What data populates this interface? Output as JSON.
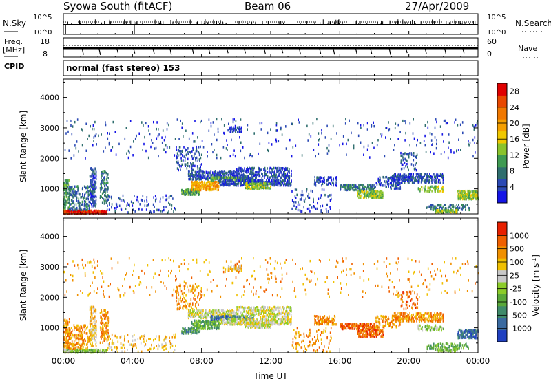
{
  "header": {
    "station": "Syowa South (fitACF)",
    "beam": "Beam 06",
    "date": "27/Apr/2009"
  },
  "nsky_panel": {
    "left_label": "N.Sky",
    "right_label": "N.Search",
    "ticks_left": [
      "10^5",
      "10^0"
    ],
    "ticks_right": [
      "10^5",
      "10^0"
    ]
  },
  "freq_panel": {
    "left_label_1": "Freq.",
    "left_label_2": "[MHz]",
    "right_label": "Nave",
    "ticks_left": [
      "18",
      "8"
    ],
    "ticks_right": [
      "60",
      "0"
    ]
  },
  "cpid_panel": {
    "label": "CPID",
    "text": "normal (fast stereo) 153"
  },
  "time_axis": {
    "label": "Time UT",
    "ticks": [
      "00:00",
      "04:00",
      "08:00",
      "12:00",
      "16:00",
      "20:00",
      "00:00"
    ]
  },
  "chart_data": [
    {
      "type": "heatmap",
      "name": "power",
      "ylabel": "Slant Range [km]",
      "xlabel": "Time UT",
      "x_range_hours": [
        0,
        24
      ],
      "ylim": [
        180,
        4600
      ],
      "y_ticks": [
        "1000",
        "2000",
        "3000",
        "4000"
      ],
      "y_tick_values": [
        1000,
        2000,
        3000,
        4000
      ],
      "colorbar": {
        "label": "Power [dB]",
        "ticks": [
          "4",
          "8",
          "12",
          "16",
          "20",
          "24",
          "28"
        ],
        "range": [
          0,
          30
        ],
        "colors": [
          "#1414e6",
          "#2a49b4",
          "#2f6e6e",
          "#3f9a52",
          "#8ac32c",
          "#f0c800",
          "#f5a000",
          "#f07800",
          "#e84800",
          "#e00000"
        ]
      }
    },
    {
      "type": "heatmap",
      "name": "velocity",
      "ylabel": "Slant Range [km]",
      "xlabel": "Time UT",
      "x_range_hours": [
        0,
        24
      ],
      "ylim": [
        180,
        4600
      ],
      "y_ticks": [
        "1000",
        "2000",
        "3000",
        "4000"
      ],
      "y_tick_values": [
        1000,
        2000,
        3000,
        4000
      ],
      "colorbar": {
        "label": "Velocity [m s",
        "label_sup": "-1",
        "label_end": "]",
        "ticks": [
          "1000",
          "500",
          "100",
          "25",
          "-25",
          "-100",
          "-500",
          "-1000"
        ],
        "colors": [
          "#2040c0",
          "#3a6aa0",
          "#3f8a6a",
          "#5aa83a",
          "#8ccc2a",
          "#c8c8c8",
          "#f0c000",
          "#f09000",
          "#f06000",
          "#e82000"
        ]
      }
    }
  ],
  "colors": {
    "ground_scatter": "#c0c0c0",
    "axis": "#000000"
  }
}
